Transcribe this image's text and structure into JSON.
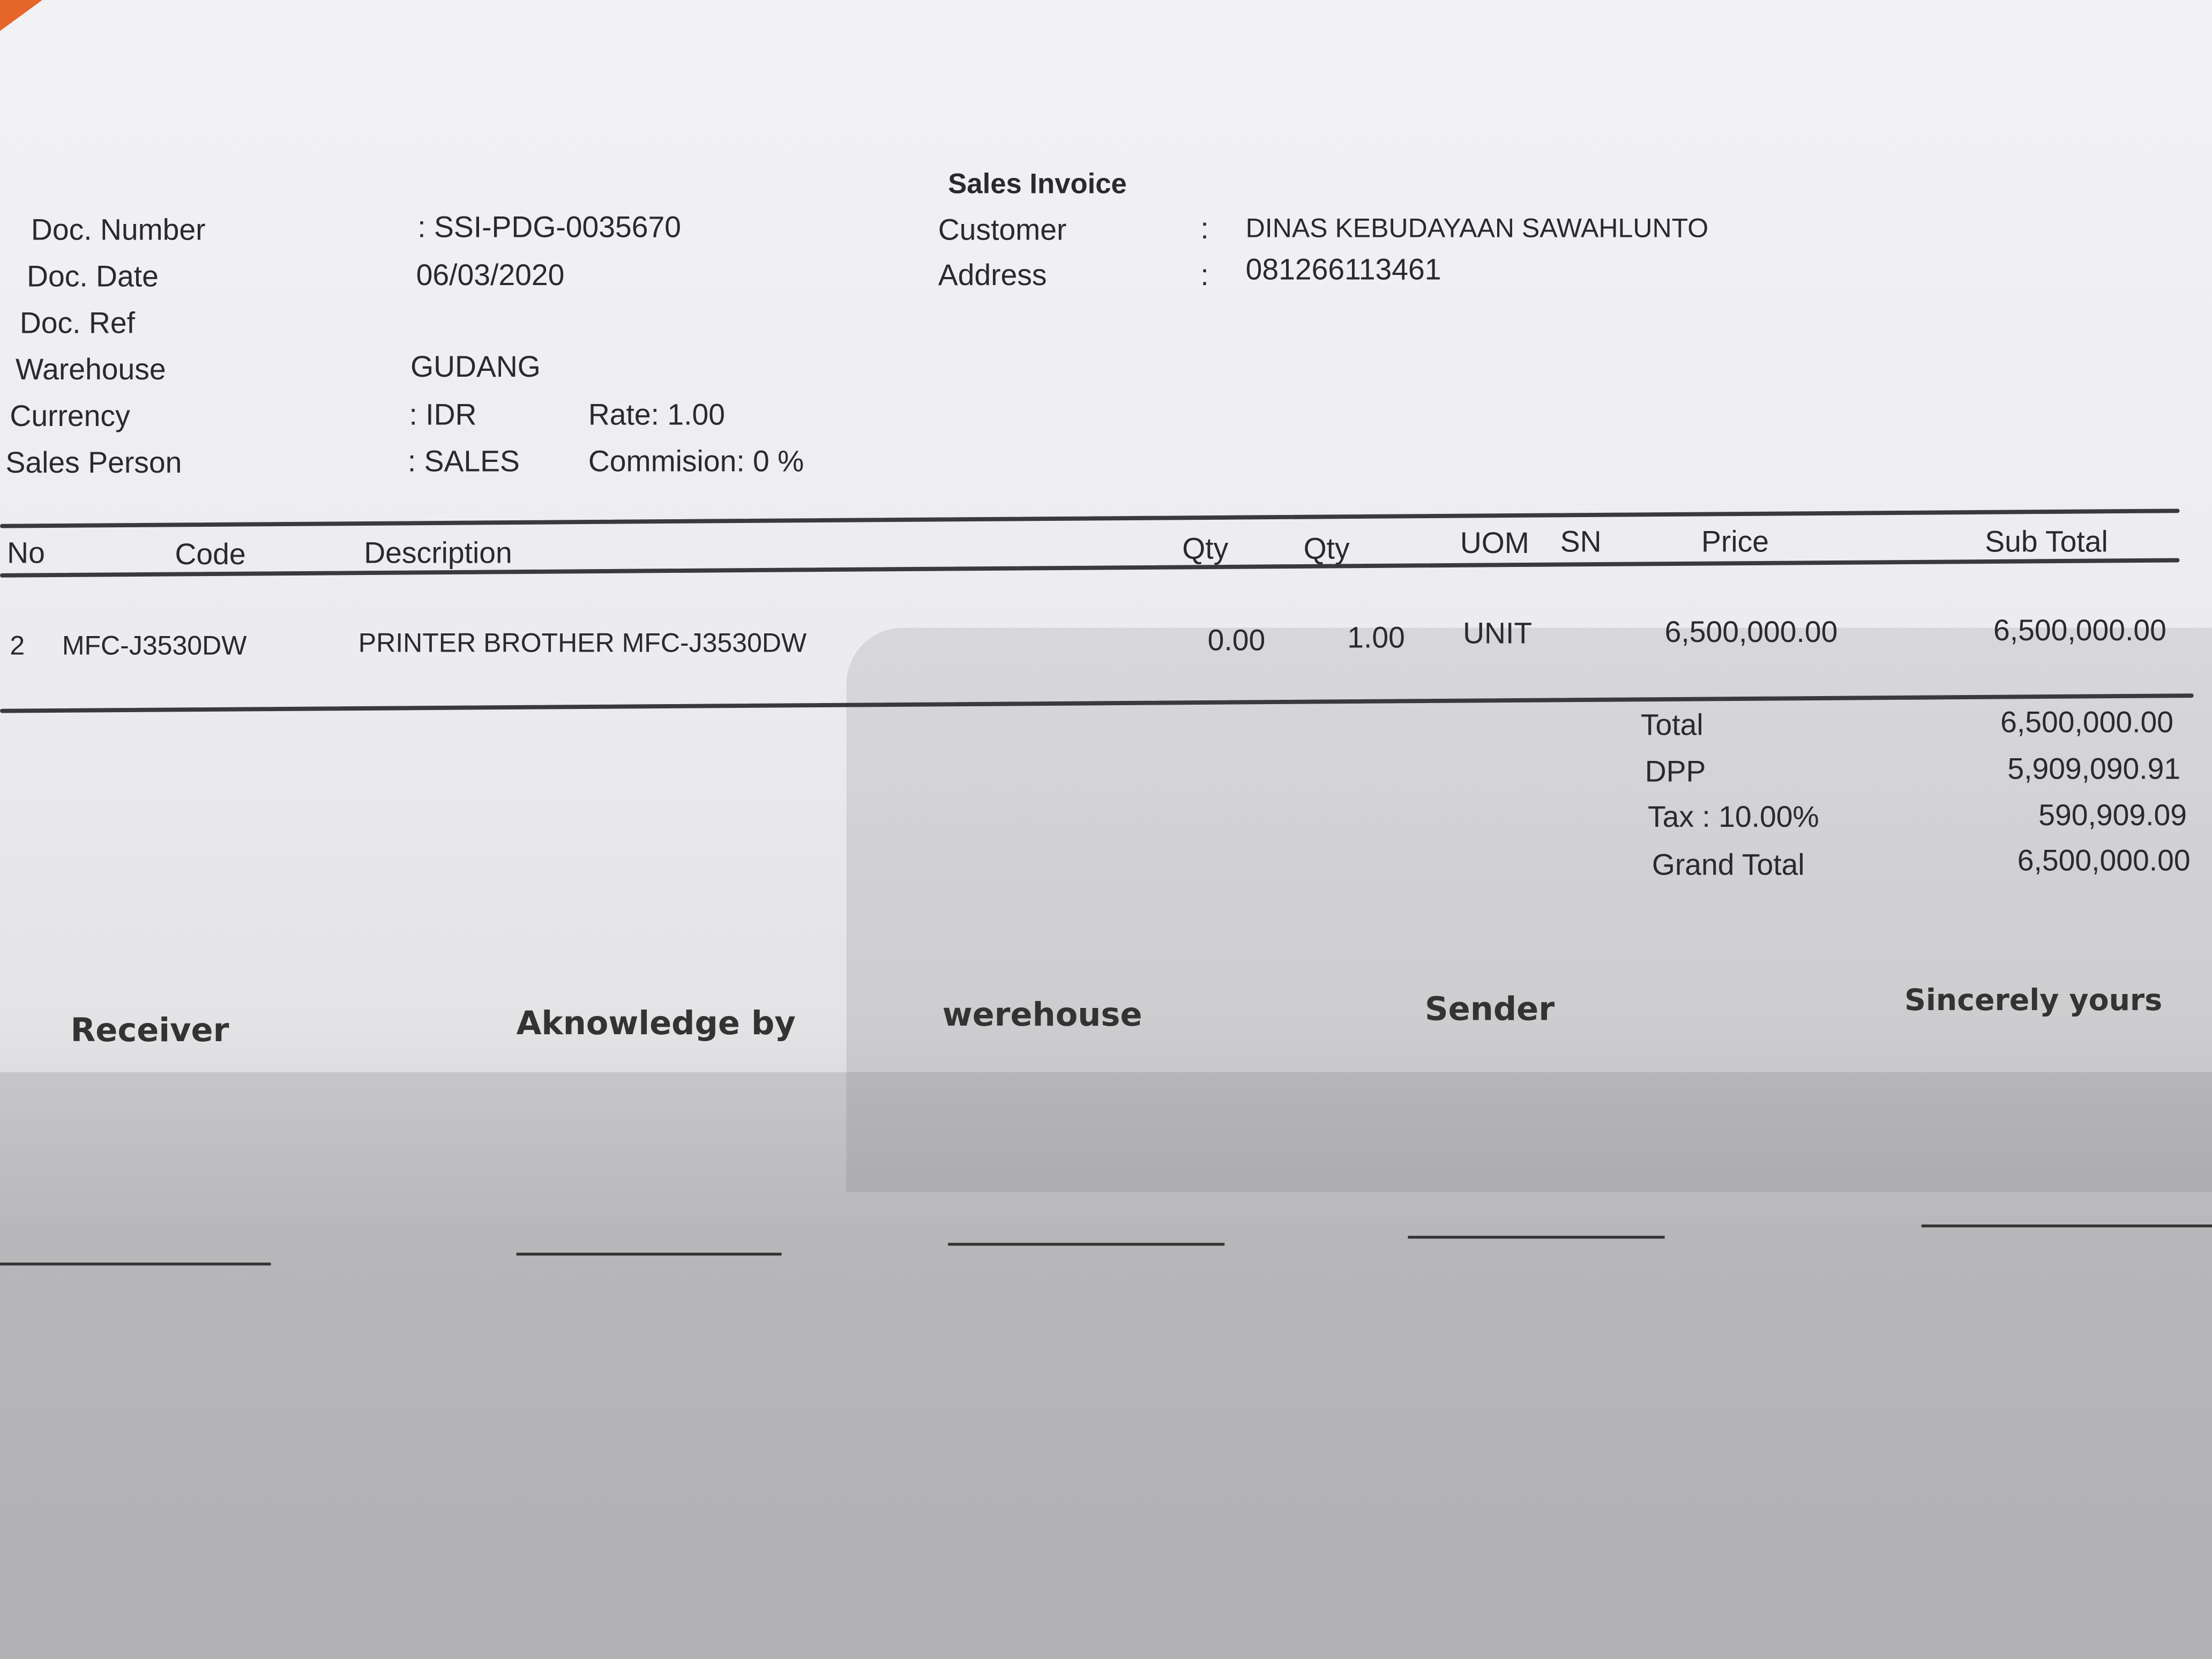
{
  "title": "Sales Invoice",
  "header_left": [
    {
      "label": "Doc. Number",
      "value": ": SSI-PDG-0035670"
    },
    {
      "label": "Doc. Date",
      "value": "06/03/2020"
    },
    {
      "label": "Doc. Ref",
      "value": ""
    },
    {
      "label": "Warehouse",
      "value": "GUDANG"
    },
    {
      "label": "Currency",
      "value": ": IDR",
      "extra": "Rate: 1.00"
    },
    {
      "label": "Sales Person",
      "value": ": SALES",
      "extra": "Commision: 0 %"
    }
  ],
  "header_right": [
    {
      "label": "Customer",
      "sep": ":",
      "value": "DINAS KEBUDAYAAN SAWAHLUNTO"
    },
    {
      "label": "Address",
      "sep": ":",
      "value": "081266113461"
    }
  ],
  "table": {
    "columns": [
      "No",
      "Code",
      "Description",
      "Qty",
      "Qty",
      "UOM",
      "SN",
      "Price",
      "Sub Total"
    ],
    "rows": [
      {
        "no": "2",
        "code": "MFC-J3530DW",
        "description": "PRINTER BROTHER MFC-J3530DW",
        "qty1": "0.00",
        "qty2": "1.00",
        "uom": "UNIT",
        "sn": "",
        "price": "6,500,000.00",
        "subtotal": "6,500,000.00"
      }
    ]
  },
  "totals": [
    {
      "label": "Total",
      "value": "6,500,000.00"
    },
    {
      "label": "DPP",
      "value": "5,909,090.91"
    },
    {
      "label": "Tax : 10.00%",
      "value": "590,909.09"
    },
    {
      "label": "Grand Total",
      "value": "6,500,000.00"
    }
  ],
  "signatures": [
    "Receiver",
    "Aknowledge by",
    "werehouse",
    "Sender",
    "Sincerely yours"
  ]
}
